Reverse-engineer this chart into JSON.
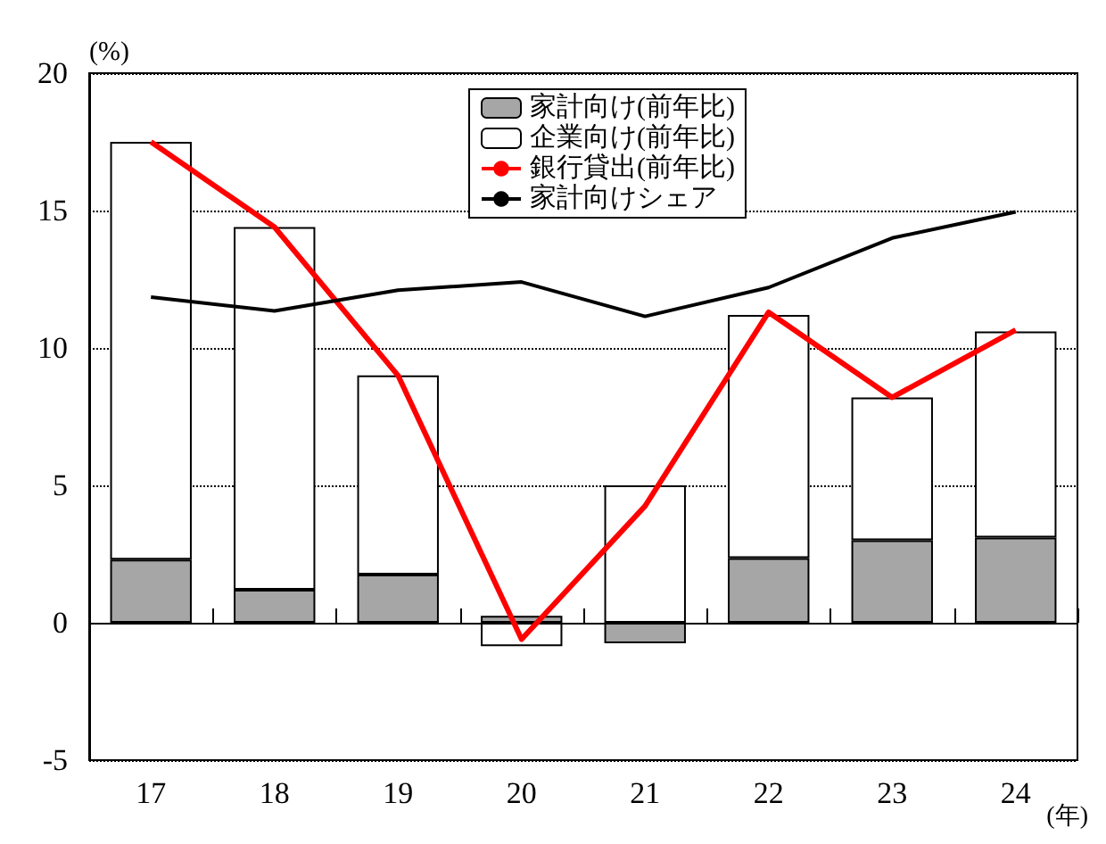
{
  "chart_data": {
    "type": "bar",
    "stacked": true,
    "ylabel": "(%)",
    "xlabel": "(年)",
    "categories": [
      "17",
      "18",
      "19",
      "20",
      "21",
      "22",
      "23",
      "24"
    ],
    "series": [
      {
        "name": "家計向け(前年比)",
        "color": "#a6a6a6",
        "values": [
          2.3,
          1.2,
          1.75,
          0.25,
          -0.75,
          2.35,
          3.0,
          3.1
        ]
      },
      {
        "name": "企業向け(前年比)",
        "color": "#ffffff",
        "values": [
          15.2,
          13.2,
          7.25,
          -0.85,
          5.0,
          8.85,
          5.2,
          7.5
        ]
      },
      {
        "name": "銀行貸出(前年比)",
        "type": "line",
        "color": "#ff0000",
        "values": [
          17.5,
          14.4,
          9.0,
          -0.6,
          4.25,
          11.3,
          8.2,
          10.65
        ]
      },
      {
        "name": "家計向けシェア",
        "type": "line",
        "color": "#000000",
        "values": [
          11.85,
          11.35,
          12.1,
          12.4,
          11.15,
          12.2,
          14.0,
          14.95
        ]
      }
    ],
    "ylim": [
      -5,
      20
    ],
    "yticks": [
      -5,
      0,
      5,
      10,
      15,
      20
    ],
    "grid": "y",
    "legend": "top",
    "marker": "none",
    "line_style": "solid"
  }
}
